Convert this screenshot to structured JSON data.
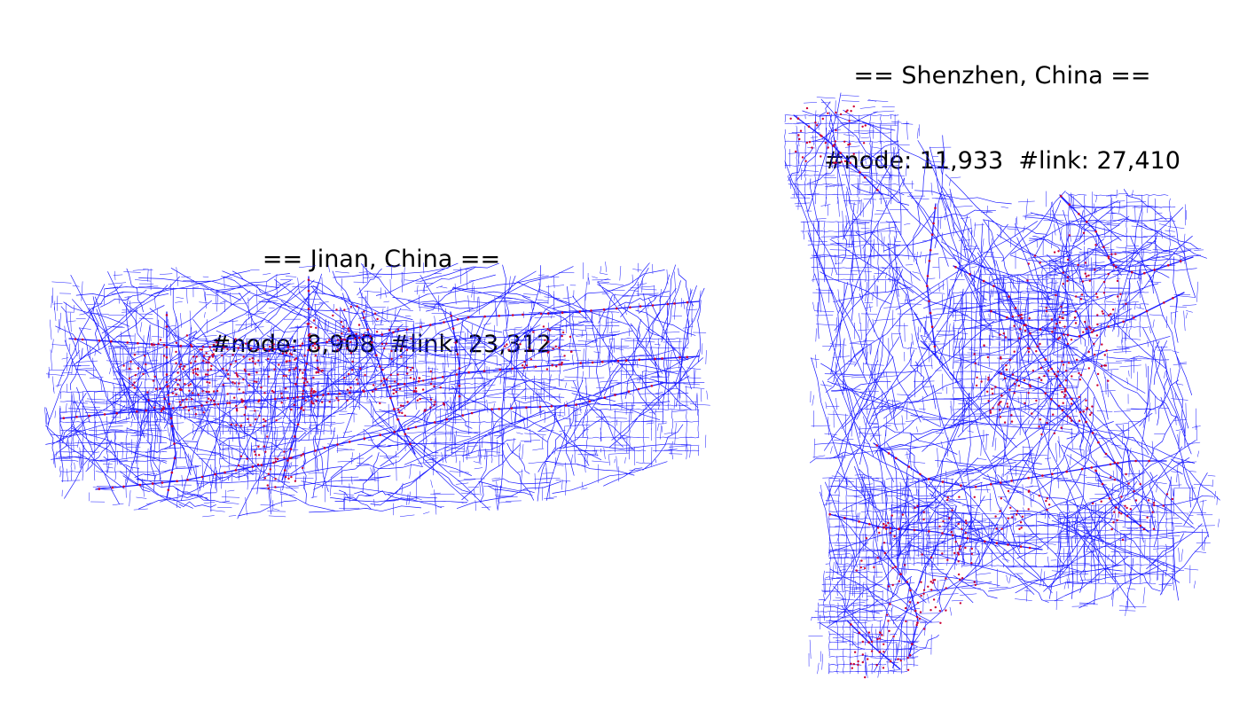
{
  "maps": [
    {
      "id": "jinan",
      "title_line1": "== Jinan, China ==",
      "title_line2": "#node: 8,908  #link: 23,312",
      "node_count": 8908,
      "link_count": 23312
    },
    {
      "id": "shenzhen",
      "title_line1": "== Shenzhen, China ==",
      "title_line2": "#node: 11,933  #link: 27,410",
      "node_count": 11933,
      "link_count": 27410
    }
  ],
  "colors": {
    "link": "#1a1aff",
    "node": "#cc0033",
    "background": "#ffffff"
  }
}
